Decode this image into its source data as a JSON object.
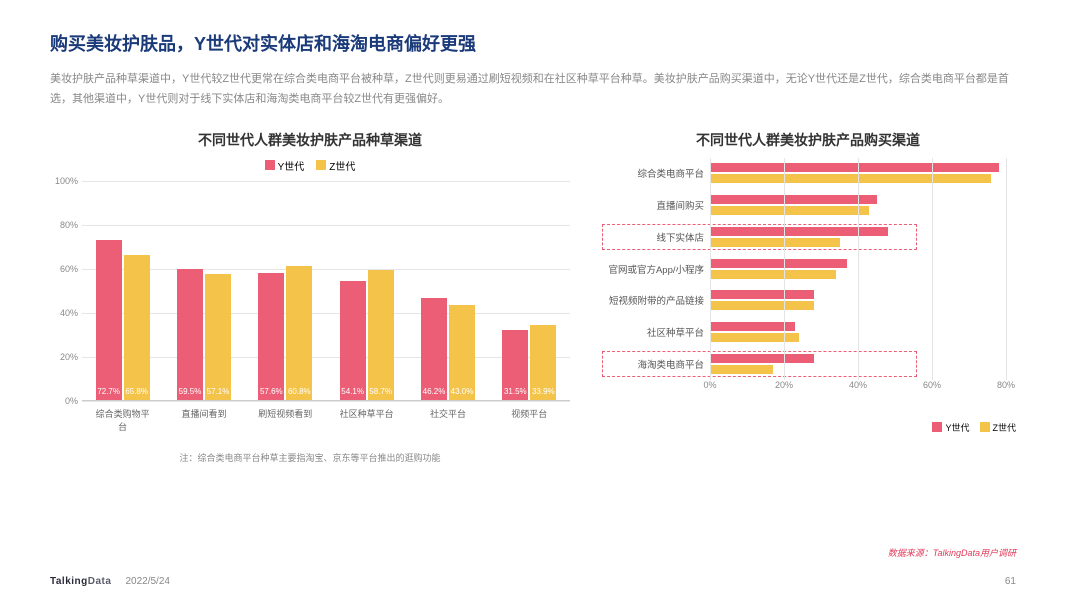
{
  "title": "购买美妆护肤品，Y世代对实体店和海淘电商偏好更强",
  "description": "美妆护肤产品种草渠道中，Y世代较Z世代更常在综合类电商平台被种草，Z世代则更易通过刷短视频和在社区种草平台种草。美妆护肤产品购买渠道中，无论Y世代还是Z世代，综合类电商平台都是首选，其他渠道中，Y世代则对于线下实体店和海淘类电商平台较Z世代有更强偏好。",
  "colors": {
    "y": "#ec5e76",
    "z": "#f4c34a",
    "grid": "#e5e5e5",
    "axis": "#cccccc"
  },
  "legend": {
    "y": "Y世代",
    "z": "Z世代"
  },
  "left_chart": {
    "title": "不同世代人群美妆护肤产品种草渠道",
    "y_max": 100,
    "y_step": 20,
    "categories": [
      "综合类购物平台",
      "直播间看到",
      "刷短视频看到",
      "社区种草平台",
      "社交平台",
      "视频平台"
    ],
    "series_y": [
      72.7,
      59.5,
      57.6,
      54.1,
      46.2,
      31.5
    ],
    "series_z": [
      65.8,
      57.1,
      60.8,
      58.7,
      43.0,
      33.9
    ],
    "labels_y": [
      "72.7%",
      "59.5%",
      "57.6%",
      "54.1%",
      "46.2%",
      "31.5%"
    ],
    "labels_z": [
      "65.8%",
      "57.1%",
      "60.8%",
      "58.7%",
      "43.0%",
      "33.9%"
    ],
    "note": "注：综合类电商平台种草主要指淘宝、京东等平台推出的逛购功能"
  },
  "right_chart": {
    "title": "不同世代人群美妆护肤产品购买渠道",
    "x_max": 80,
    "x_step": 20,
    "categories": [
      "综合类电商平台",
      "直播间购买",
      "线下实体店",
      "官网或官方App/小程序",
      "短视频附带的产品链接",
      "社区种草平台",
      "海淘类电商平台"
    ],
    "series_y": [
      78,
      45,
      48,
      37,
      28,
      23,
      28
    ],
    "series_z": [
      76,
      43,
      35,
      34,
      28,
      24,
      17
    ],
    "highlight_rows": [
      2,
      6
    ]
  },
  "source": "数据来源：TalkingData用户调研",
  "footer": {
    "logo": "TalkingData",
    "date": "2022/5/24",
    "page": "61"
  }
}
